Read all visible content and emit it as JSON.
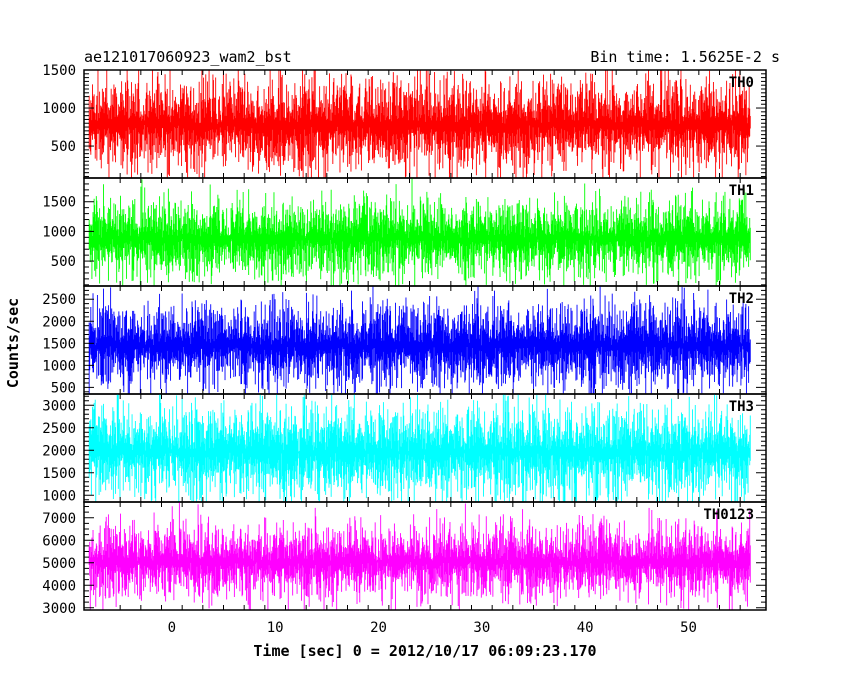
{
  "header": {
    "left": "ae121017060923_wam2_bst",
    "right": "Bin time: 1.5625E-2 s"
  },
  "chart_data": {
    "type": "line",
    "title": "ae121017060923_wam2_bst",
    "subtitle": "Bin time: 1.5625E-2 s",
    "xlabel": "Time [sec] 0 = 2012/10/17 06:09:23.170",
    "ylabel": "Counts/sec",
    "xlim": [
      -8.5,
      57.5
    ],
    "x_ticks": [
      0,
      10,
      20,
      30,
      40,
      50
    ],
    "x_range_data": [
      -8.0,
      56.0
    ],
    "bin_time": 0.015625,
    "grid": false,
    "panels": [
      {
        "name": "TH0",
        "color": "#ff0000",
        "ylim": [
          80,
          1500
        ],
        "y_ticks": [
          500,
          1000,
          1500
        ],
        "mean": 780,
        "spread": 330
      },
      {
        "name": "TH1",
        "color": "#00ff00",
        "ylim": [
          80,
          1900
        ],
        "y_ticks": [
          500,
          1000,
          1500
        ],
        "mean": 880,
        "spread": 360
      },
      {
        "name": "TH2",
        "color": "#0000ff",
        "ylim": [
          350,
          2800
        ],
        "y_ticks": [
          500,
          1000,
          1500,
          2000,
          2500
        ],
        "mean": 1450,
        "spread": 520
      },
      {
        "name": "TH3",
        "color": "#00ffff",
        "ylim": [
          850,
          3250
        ],
        "y_ticks": [
          1000,
          1500,
          2000,
          2500,
          3000
        ],
        "mean": 1960,
        "spread": 560
      },
      {
        "name": "TH0123",
        "color": "#ff00ff",
        "ylim": [
          2900,
          7700
        ],
        "y_ticks": [
          3000,
          4000,
          5000,
          6000,
          7000
        ],
        "mean": 5050,
        "spread": 900
      }
    ]
  }
}
